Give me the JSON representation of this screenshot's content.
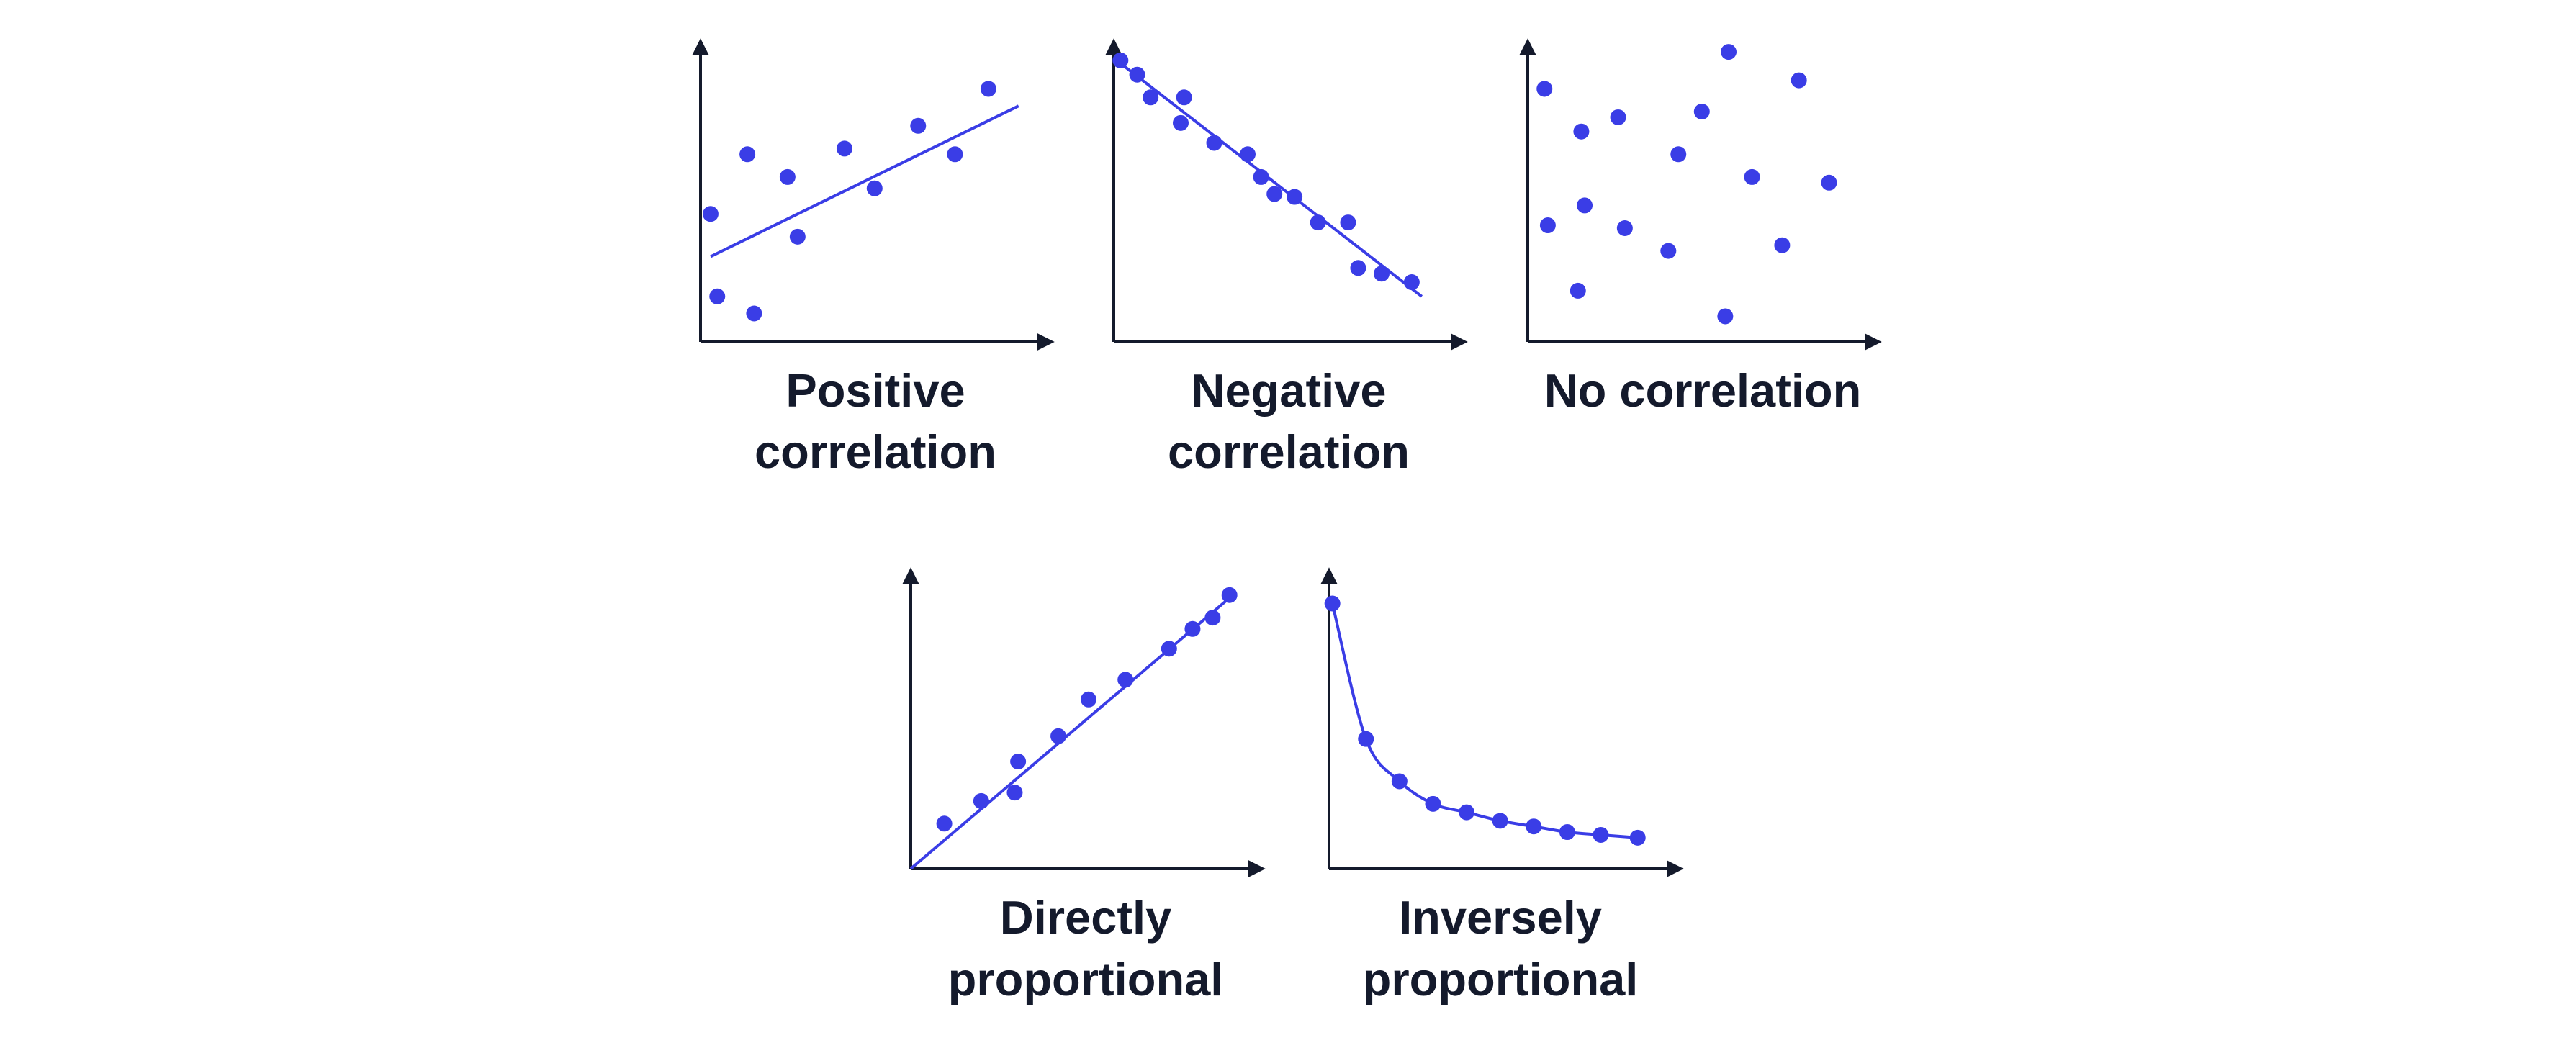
{
  "colors": {
    "axis": "#141a2c",
    "series": "#3a3de6",
    "text": "#141a2c",
    "background": "#ffffff"
  },
  "chart_data": [
    {
      "type": "scatter",
      "label_lines": [
        "Positive",
        "correlation"
      ],
      "xlim": [
        0,
        10
      ],
      "ylim": [
        0,
        10
      ],
      "trendline": {
        "kind": "linear",
        "x": [
          0.3,
          9.5
        ],
        "y": [
          3.0,
          8.3
        ]
      },
      "points": [
        {
          "x": 0.3,
          "y": 4.5
        },
        {
          "x": 0.5,
          "y": 1.6
        },
        {
          "x": 1.4,
          "y": 6.6
        },
        {
          "x": 1.6,
          "y": 1.0
        },
        {
          "x": 2.6,
          "y": 5.8
        },
        {
          "x": 2.9,
          "y": 3.7
        },
        {
          "x": 4.3,
          "y": 6.8
        },
        {
          "x": 5.2,
          "y": 5.4
        },
        {
          "x": 6.5,
          "y": 7.6
        },
        {
          "x": 7.6,
          "y": 6.6
        },
        {
          "x": 8.6,
          "y": 8.9
        }
      ]
    },
    {
      "type": "scatter",
      "label_lines": [
        "Negative",
        "correlation"
      ],
      "xlim": [
        0,
        10
      ],
      "ylim": [
        0,
        10
      ],
      "trendline": {
        "kind": "linear",
        "x": [
          0.2,
          9.2
        ],
        "y": [
          9.8,
          1.6
        ]
      },
      "points": [
        {
          "x": 0.2,
          "y": 9.9
        },
        {
          "x": 0.7,
          "y": 9.4
        },
        {
          "x": 1.1,
          "y": 8.6
        },
        {
          "x": 2.0,
          "y": 7.7
        },
        {
          "x": 2.1,
          "y": 8.6
        },
        {
          "x": 3.0,
          "y": 7.0
        },
        {
          "x": 4.0,
          "y": 6.6
        },
        {
          "x": 4.4,
          "y": 5.8
        },
        {
          "x": 4.8,
          "y": 5.2
        },
        {
          "x": 5.4,
          "y": 5.1
        },
        {
          "x": 6.1,
          "y": 4.2
        },
        {
          "x": 7.0,
          "y": 4.2
        },
        {
          "x": 7.3,
          "y": 2.6
        },
        {
          "x": 8.0,
          "y": 2.4
        },
        {
          "x": 8.9,
          "y": 2.1
        }
      ]
    },
    {
      "type": "scatter",
      "label_lines": [
        "No correlation"
      ],
      "xlim": [
        0,
        10
      ],
      "ylim": [
        0,
        10
      ],
      "points": [
        {
          "x": 0.5,
          "y": 8.9
        },
        {
          "x": 0.6,
          "y": 4.1
        },
        {
          "x": 1.5,
          "y": 1.8
        },
        {
          "x": 1.6,
          "y": 7.4
        },
        {
          "x": 1.7,
          "y": 4.8
        },
        {
          "x": 2.7,
          "y": 7.9
        },
        {
          "x": 2.9,
          "y": 4.0
        },
        {
          "x": 4.2,
          "y": 3.2
        },
        {
          "x": 4.5,
          "y": 6.6
        },
        {
          "x": 5.2,
          "y": 8.1
        },
        {
          "x": 5.9,
          "y": 0.9
        },
        {
          "x": 6.0,
          "y": 10.2
        },
        {
          "x": 6.7,
          "y": 5.8
        },
        {
          "x": 7.6,
          "y": 3.4
        },
        {
          "x": 8.1,
          "y": 9.2
        },
        {
          "x": 9.0,
          "y": 5.6
        }
      ]
    },
    {
      "type": "scatter",
      "label_lines": [
        "Directly",
        "proportional"
      ],
      "xlim": [
        0,
        10
      ],
      "ylim": [
        0,
        10
      ],
      "trendline": {
        "kind": "linear",
        "x": [
          0,
          9.7
        ],
        "y": [
          0,
          9.8
        ]
      },
      "points": [
        {
          "x": 1.0,
          "y": 1.6
        },
        {
          "x": 2.1,
          "y": 2.4
        },
        {
          "x": 3.1,
          "y": 2.7
        },
        {
          "x": 3.2,
          "y": 3.8
        },
        {
          "x": 4.4,
          "y": 4.7
        },
        {
          "x": 5.3,
          "y": 6.0
        },
        {
          "x": 6.4,
          "y": 6.7
        },
        {
          "x": 7.7,
          "y": 7.8
        },
        {
          "x": 8.4,
          "y": 8.5
        },
        {
          "x": 9.0,
          "y": 8.9
        },
        {
          "x": 9.5,
          "y": 9.7
        }
      ]
    },
    {
      "type": "line",
      "label_lines": [
        "Inversely",
        "proportional"
      ],
      "xlim": [
        0,
        10
      ],
      "ylim": [
        0,
        10
      ],
      "points": [
        {
          "x": 0.1,
          "y": 9.4
        },
        {
          "x": 1.1,
          "y": 4.6
        },
        {
          "x": 2.1,
          "y": 3.1
        },
        {
          "x": 3.1,
          "y": 2.3
        },
        {
          "x": 4.1,
          "y": 2.0
        },
        {
          "x": 5.1,
          "y": 1.7
        },
        {
          "x": 6.1,
          "y": 1.5
        },
        {
          "x": 7.1,
          "y": 1.3
        },
        {
          "x": 8.1,
          "y": 1.2
        },
        {
          "x": 9.2,
          "y": 1.1
        }
      ]
    }
  ]
}
